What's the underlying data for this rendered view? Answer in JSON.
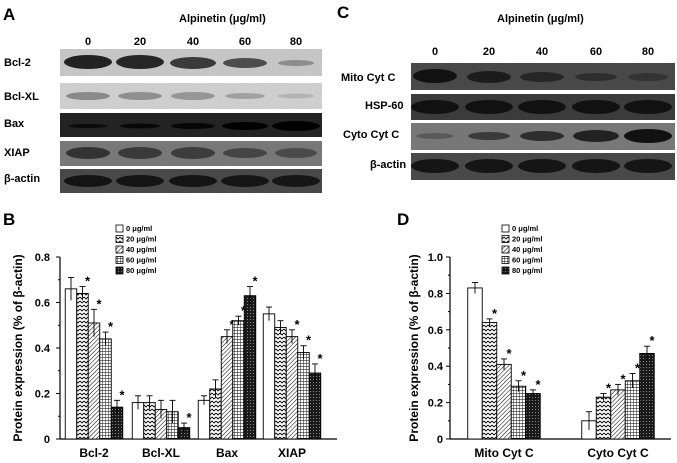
{
  "figure": {
    "panels": {
      "A": {
        "letter": "A",
        "title": "Alpinetin (μg/ml)",
        "doses": [
          "0",
          "20",
          "40",
          "60",
          "80"
        ],
        "rows": [
          "Bcl-2",
          "Bcl-XL",
          "Bax",
          "XIAP",
          "β-actin"
        ]
      },
      "C": {
        "letter": "C",
        "title": "Alpinetin (μg/ml)",
        "doses": [
          "0",
          "20",
          "40",
          "60",
          "80"
        ],
        "rows": [
          "Mito Cyt C",
          "HSP-60",
          "Cyto Cyt C",
          "β-actin"
        ]
      },
      "B": {
        "letter": "B"
      },
      "D": {
        "letter": "D"
      }
    }
  },
  "chart_data": [
    {
      "panel": "B",
      "type": "bar",
      "ylabel": "Protein expression (% of β-actin)",
      "ylim": [
        0,
        0.8
      ],
      "yticks": [
        "0",
        "0.2",
        "0.4",
        "0.6",
        "0.8"
      ],
      "categories": [
        "Bcl-2",
        "Bcl-XL",
        "Bax",
        "XIAP"
      ],
      "legend_position": "top-left",
      "series": [
        {
          "name": "0 μg/ml",
          "pattern": "white",
          "values": [
            0.66,
            0.16,
            0.17,
            0.55
          ],
          "errors": [
            0.05,
            0.03,
            0.02,
            0.03
          ],
          "significant": [
            false,
            false,
            false,
            false
          ]
        },
        {
          "name": "20 μg/ml",
          "pattern": "zigzag",
          "values": [
            0.64,
            0.16,
            0.22,
            0.49
          ],
          "errors": [
            0.03,
            0.03,
            0.04,
            0.03
          ],
          "significant": [
            true,
            false,
            false,
            false
          ]
        },
        {
          "name": "40 μg/ml",
          "pattern": "diagonal",
          "values": [
            0.51,
            0.13,
            0.45,
            0.45
          ],
          "errors": [
            0.06,
            0.04,
            0.03,
            0.03
          ],
          "significant": [
            true,
            false,
            true,
            true
          ]
        },
        {
          "name": "60 μg/ml",
          "pattern": "grid",
          "values": [
            0.44,
            0.12,
            0.52,
            0.38
          ],
          "errors": [
            0.03,
            0.05,
            0.02,
            0.03
          ],
          "significant": [
            true,
            false,
            true,
            true
          ]
        },
        {
          "name": "80 μg/ml",
          "pattern": "dark",
          "values": [
            0.14,
            0.05,
            0.63,
            0.29
          ],
          "errors": [
            0.03,
            0.02,
            0.04,
            0.04
          ],
          "significant": [
            true,
            true,
            true,
            true
          ]
        }
      ]
    },
    {
      "panel": "D",
      "type": "bar",
      "ylabel": "Protein expression (% of β-actin)",
      "ylim": [
        0,
        1.0
      ],
      "yticks": [
        "0",
        "0.2",
        "0.4",
        "0.6",
        "0.8",
        "1.0"
      ],
      "categories": [
        "Mito Cyt C",
        "Cyto Cyt C"
      ],
      "legend_position": "top-left",
      "series": [
        {
          "name": "0 μg/ml",
          "pattern": "white",
          "values": [
            0.83,
            0.1
          ],
          "errors": [
            0.03,
            0.05
          ],
          "significant": [
            false,
            false
          ]
        },
        {
          "name": "20 μg/ml",
          "pattern": "zigzag",
          "values": [
            0.64,
            0.23
          ],
          "errors": [
            0.02,
            0.02
          ],
          "significant": [
            true,
            true
          ]
        },
        {
          "name": "40 μg/ml",
          "pattern": "diagonal",
          "values": [
            0.41,
            0.27
          ],
          "errors": [
            0.03,
            0.03
          ],
          "significant": [
            true,
            true
          ]
        },
        {
          "name": "60 μg/ml",
          "pattern": "grid",
          "values": [
            0.29,
            0.32
          ],
          "errors": [
            0.03,
            0.04
          ],
          "significant": [
            true,
            true
          ]
        },
        {
          "name": "80 μg/ml",
          "pattern": "dark",
          "values": [
            0.25,
            0.47
          ],
          "errors": [
            0.02,
            0.04
          ],
          "significant": [
            true,
            true
          ]
        }
      ]
    }
  ],
  "significance_marker": "*"
}
